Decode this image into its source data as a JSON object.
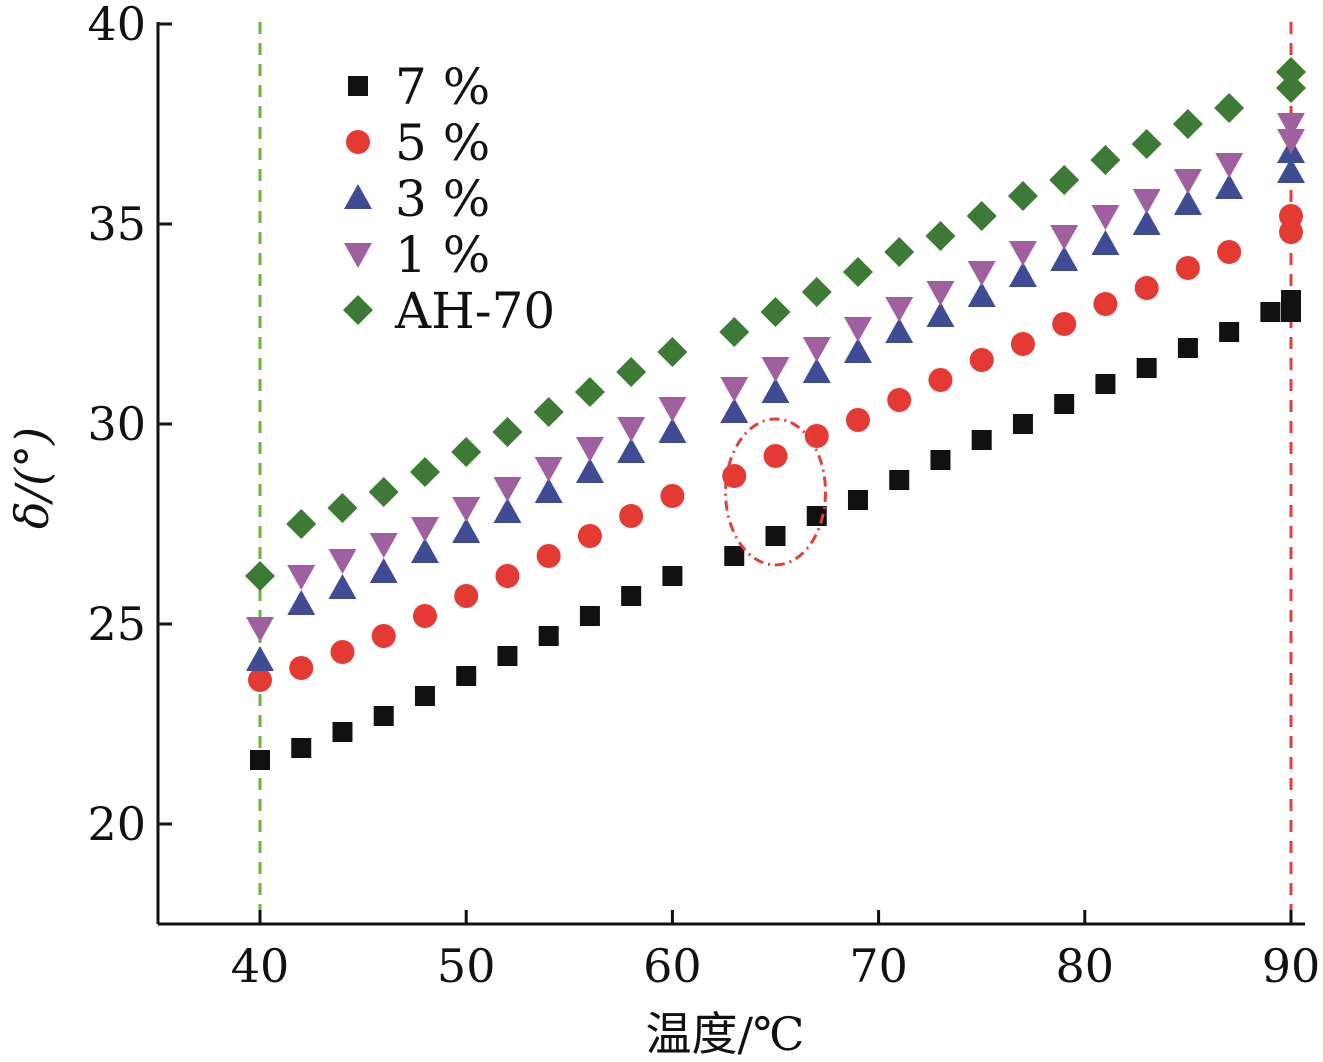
{
  "chart_data": {
    "type": "scatter",
    "title": "",
    "xlabel": "温度/℃",
    "ylabel": "δ/(°)",
    "xlim": [
      35,
      90
    ],
    "ylim": [
      17.5,
      40
    ],
    "xticks": [
      "40",
      "50",
      "60",
      "70",
      "80",
      "90"
    ],
    "yticks": [
      "20",
      "25",
      "30",
      "35",
      "40"
    ],
    "grid": false,
    "legend_position": "top-left",
    "reference_lines": [
      {
        "x": 40,
        "color": "#6db33f",
        "style": "dashed"
      },
      {
        "x": 90,
        "color": "#e0403a",
        "style": "dashed"
      }
    ],
    "annotation": {
      "type": "dotted-ellipse",
      "color": "#e0403a",
      "center": [
        65,
        28.3
      ]
    },
    "series": [
      {
        "name": "7 %",
        "marker": "square",
        "color": "#111111",
        "x": [
          40,
          42,
          44,
          46,
          48,
          50,
          52,
          54,
          56,
          58,
          60,
          63,
          65,
          67,
          69,
          71,
          73,
          75,
          77,
          79,
          81,
          83,
          85,
          87,
          89,
          90,
          90
        ],
        "y": [
          21.6,
          21.9,
          22.3,
          22.7,
          23.2,
          23.7,
          24.2,
          24.7,
          25.2,
          25.7,
          26.2,
          26.7,
          27.2,
          27.7,
          28.1,
          28.6,
          29.1,
          29.6,
          30.0,
          30.5,
          31.0,
          31.4,
          31.9,
          32.3,
          32.8,
          33.1,
          32.8
        ]
      },
      {
        "name": "5 %",
        "marker": "circle",
        "color": "#e53a33",
        "x": [
          40,
          42,
          44,
          46,
          48,
          50,
          52,
          54,
          56,
          58,
          60,
          63,
          65,
          67,
          69,
          71,
          73,
          75,
          77,
          79,
          81,
          83,
          85,
          87,
          90,
          90
        ],
        "y": [
          23.6,
          23.9,
          24.3,
          24.7,
          25.2,
          25.7,
          26.2,
          26.7,
          27.2,
          27.7,
          28.2,
          28.7,
          29.2,
          29.7,
          30.1,
          30.6,
          31.1,
          31.6,
          32.0,
          32.5,
          33.0,
          33.4,
          33.9,
          34.3,
          34.8,
          35.2
        ]
      },
      {
        "name": "3 %",
        "marker": "triangle-up",
        "color": "#3f4b93",
        "x": [
          40,
          42,
          44,
          46,
          48,
          50,
          52,
          54,
          56,
          58,
          60,
          63,
          65,
          67,
          69,
          71,
          73,
          75,
          77,
          79,
          81,
          83,
          85,
          87,
          90,
          90
        ],
        "y": [
          24.1,
          25.5,
          25.9,
          26.3,
          26.8,
          27.3,
          27.8,
          28.3,
          28.8,
          29.3,
          29.8,
          30.3,
          30.8,
          31.3,
          31.8,
          32.3,
          32.7,
          33.2,
          33.7,
          34.1,
          34.5,
          35.0,
          35.5,
          35.9,
          36.3,
          36.8
        ]
      },
      {
        "name": "1 %",
        "marker": "triangle-down",
        "color": "#a060a0",
        "x": [
          40,
          42,
          44,
          46,
          48,
          50,
          52,
          54,
          56,
          58,
          60,
          63,
          65,
          67,
          69,
          71,
          73,
          75,
          77,
          79,
          81,
          83,
          85,
          87,
          90,
          90
        ],
        "y": [
          24.9,
          26.2,
          26.6,
          27.0,
          27.4,
          27.9,
          28.4,
          28.9,
          29.4,
          29.9,
          30.4,
          30.9,
          31.4,
          31.9,
          32.4,
          32.9,
          33.3,
          33.8,
          34.3,
          34.7,
          35.2,
          35.6,
          36.1,
          36.5,
          37.1,
          37.5
        ]
      },
      {
        "name": "AH-70",
        "marker": "diamond",
        "color": "#3d7a35",
        "x": [
          40,
          42,
          44,
          46,
          48,
          50,
          52,
          54,
          56,
          58,
          60,
          63,
          65,
          67,
          69,
          71,
          73,
          75,
          77,
          79,
          81,
          83,
          85,
          87,
          90,
          90
        ],
        "y": [
          26.2,
          27.5,
          27.9,
          28.3,
          28.8,
          29.3,
          29.8,
          30.3,
          30.8,
          31.3,
          31.8,
          32.3,
          32.8,
          33.3,
          33.8,
          34.3,
          34.7,
          35.2,
          35.7,
          36.1,
          36.6,
          37.0,
          37.5,
          37.9,
          38.4,
          38.8
        ]
      }
    ]
  }
}
